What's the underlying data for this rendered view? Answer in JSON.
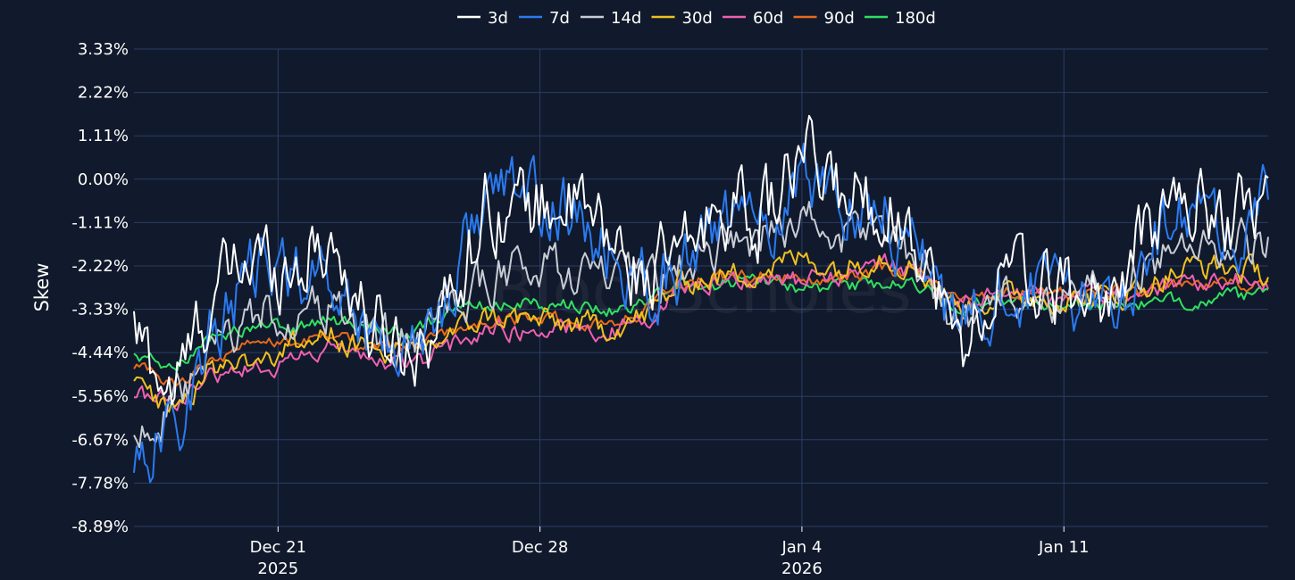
{
  "chart_data": {
    "type": "line",
    "title": "",
    "xlabel": "",
    "ylabel": "Skew",
    "watermark": "BlockScholes",
    "background_color": "#111a2c",
    "grid": true,
    "legend_position": "top-center",
    "ylim": [
      -8.89,
      3.33
    ],
    "y_ticks": [
      3.33,
      2.22,
      1.11,
      0.0,
      -1.11,
      -2.22,
      -3.33,
      -4.44,
      -5.56,
      -6.67,
      -7.78,
      -8.89
    ],
    "y_tick_labels": [
      "3.33%",
      "2.22%",
      "1.11%",
      "0.00%",
      "-1.11%",
      "-2.22%",
      "-3.33%",
      "-4.44%",
      "-5.56%",
      "-6.67%",
      "-7.78%",
      "-8.89%"
    ],
    "xlim": [
      -5.5,
      37.8
    ],
    "x_ticks": [
      0,
      10,
      20,
      30
    ],
    "x_tick_labels": [
      [
        "Dec 21",
        "2025"
      ],
      [
        "Dec 28",
        ""
      ],
      [
        "Jan 4",
        "2026"
      ],
      [
        "Jan 11",
        ""
      ]
    ],
    "x_unit": "days since Dec 21 2025",
    "series": [
      {
        "name": "3d",
        "color": "#ffffff",
        "volatility": 0.85,
        "x": [
          -5.5,
          -4,
          -2.5,
          -1,
          0.5,
          2,
          3.5,
          5,
          6.5,
          8,
          9.5,
          11,
          12.5,
          14,
          15.5,
          17,
          18.5,
          20,
          21.5,
          23,
          24.5,
          26,
          27.5,
          29,
          30.5,
          32,
          33.5,
          35,
          36.5,
          37.8
        ],
        "values": [
          -4.0,
          -5.5,
          -3.0,
          -2.0,
          -2.2,
          -1.5,
          -3.8,
          -4.3,
          -3.2,
          -0.5,
          -0.8,
          -0.5,
          -1.5,
          -2.5,
          -2.0,
          -0.5,
          -1.0,
          0.5,
          -0.4,
          -0.5,
          -1.5,
          -4.5,
          -2.5,
          -2.7,
          -3.0,
          -3.0,
          -1.0,
          -0.5,
          -1.0,
          -0.2
        ]
      },
      {
        "name": "7d",
        "color": "#2a7af0",
        "volatility": 0.75,
        "x": [
          -5.5,
          -4,
          -2.5,
          -1,
          0.5,
          2,
          3.5,
          5,
          6.5,
          8,
          9.5,
          11,
          12.5,
          14,
          15.5,
          17,
          18.5,
          20,
          21.5,
          23,
          24.5,
          26,
          27.5,
          29,
          30.5,
          32,
          33.5,
          35,
          36.5,
          37.8
        ],
        "values": [
          -7.0,
          -6.5,
          -4.0,
          -2.5,
          -2.3,
          -2.5,
          -4.0,
          -4.3,
          -3.0,
          -0.2,
          -0.5,
          -0.8,
          -2.0,
          -2.6,
          -2.3,
          -1.0,
          -1.5,
          0.3,
          -0.5,
          -0.8,
          -1.8,
          -4.2,
          -2.8,
          -2.9,
          -3.1,
          -3.0,
          -1.5,
          -1.0,
          -1.5,
          -0.3
        ]
      },
      {
        "name": "14d",
        "color": "#c8ccd4",
        "volatility": 0.5,
        "x": [
          -5.5,
          -4,
          -2.5,
          -1,
          0.5,
          2,
          3.5,
          5,
          6.5,
          8,
          9.5,
          11,
          12.5,
          14,
          15.5,
          17,
          18.5,
          20,
          21.5,
          23,
          24.5,
          26,
          27.5,
          29,
          30.5,
          32,
          33.5,
          35,
          36.5,
          37.8
        ],
        "values": [
          -6.5,
          -6.0,
          -4.5,
          -3.5,
          -3.5,
          -3.3,
          -4.0,
          -4.2,
          -3.5,
          -2.5,
          -2.3,
          -2.3,
          -2.5,
          -2.7,
          -2.4,
          -1.5,
          -1.5,
          -1.0,
          -1.5,
          -1.2,
          -2.0,
          -3.8,
          -2.9,
          -3.0,
          -3.1,
          -3.0,
          -2.0,
          -1.5,
          -1.8,
          -1.6
        ]
      },
      {
        "name": "30d",
        "color": "#f0c020",
        "volatility": 0.28,
        "x": [
          -5.5,
          -4,
          -2.5,
          -1,
          0.5,
          2,
          3.5,
          5,
          6.5,
          8,
          9.5,
          11,
          12.5,
          14,
          15.5,
          17,
          18.5,
          20,
          21.5,
          23,
          24.5,
          26,
          27.5,
          29,
          30.5,
          32,
          33.5,
          35,
          36.5,
          37.8
        ],
        "values": [
          -5.3,
          -5.8,
          -4.8,
          -4.6,
          -4.3,
          -4.0,
          -4.4,
          -4.5,
          -4.0,
          -3.5,
          -3.6,
          -3.7,
          -3.8,
          -3.5,
          -2.6,
          -2.5,
          -2.3,
          -2.0,
          -2.3,
          -1.9,
          -2.3,
          -3.3,
          -3.0,
          -3.0,
          -3.1,
          -3.0,
          -2.6,
          -2.2,
          -2.3,
          -2.4
        ]
      },
      {
        "name": "60d",
        "color": "#f060b0",
        "volatility": 0.2,
        "x": [
          -5.5,
          -4,
          -2.5,
          -1,
          0.5,
          2,
          3.5,
          5,
          6.5,
          8,
          9.5,
          11,
          12.5,
          14,
          15.5,
          17,
          18.5,
          20,
          21.5,
          23,
          24.5,
          26,
          27.5,
          29,
          30.5,
          32,
          33.5,
          35,
          36.5,
          37.8
        ],
        "values": [
          -5.4,
          -5.8,
          -5.0,
          -4.8,
          -4.7,
          -4.3,
          -4.6,
          -4.8,
          -4.3,
          -3.8,
          -3.9,
          -3.8,
          -3.9,
          -3.7,
          -2.7,
          -2.6,
          -2.5,
          -2.6,
          -2.5,
          -2.1,
          -2.4,
          -3.2,
          -3.0,
          -3.0,
          -3.0,
          -2.9,
          -2.8,
          -2.6,
          -2.5,
          -2.6
        ]
      },
      {
        "name": "90d",
        "color": "#e86a1a",
        "volatility": 0.15,
        "x": [
          -5.5,
          -4,
          -2.5,
          -1,
          0.5,
          2,
          3.5,
          5,
          6.5,
          8,
          9.5,
          11,
          12.5,
          14,
          15.5,
          17,
          18.5,
          20,
          21.5,
          23,
          24.5,
          26,
          27.5,
          29,
          30.5,
          32,
          33.5,
          35,
          36.5,
          37.8
        ],
        "values": [
          -4.8,
          -5.3,
          -4.6,
          -4.3,
          -4.2,
          -4.0,
          -4.2,
          -4.3,
          -4.0,
          -3.6,
          -3.6,
          -3.6,
          -3.7,
          -3.4,
          -2.6,
          -2.5,
          -2.4,
          -2.6,
          -2.5,
          -2.3,
          -2.4,
          -3.1,
          -2.9,
          -2.9,
          -2.9,
          -2.9,
          -2.8,
          -2.7,
          -2.7,
          -2.6
        ]
      },
      {
        "name": "180d",
        "color": "#30e060",
        "volatility": 0.15,
        "x": [
          -5.5,
          -4,
          -2.5,
          -1,
          0.5,
          2,
          3.5,
          5,
          6.5,
          8,
          9.5,
          11,
          12.5,
          14,
          15.5,
          17,
          18.5,
          20,
          21.5,
          23,
          24.5,
          26,
          27.5,
          29,
          30.5,
          32,
          33.5,
          35,
          36.5,
          37.8
        ],
        "values": [
          -4.5,
          -4.8,
          -4.0,
          -3.8,
          -3.8,
          -3.6,
          -3.7,
          -3.9,
          -3.5,
          -3.2,
          -3.2,
          -3.2,
          -3.4,
          -3.2,
          -2.7,
          -2.7,
          -2.6,
          -2.8,
          -2.8,
          -2.7,
          -2.7,
          -3.3,
          -3.1,
          -3.2,
          -3.2,
          -3.2,
          -3.2,
          -3.1,
          -3.0,
          -3.0
        ]
      }
    ]
  }
}
